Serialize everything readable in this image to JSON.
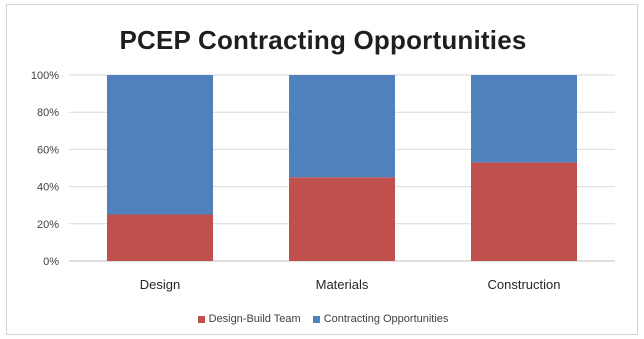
{
  "chart_data": {
    "type": "bar",
    "stacked": "percent",
    "title": "PCEP Contracting Opportunities",
    "categories": [
      "Design",
      "Materials",
      "Construction"
    ],
    "series": [
      {
        "name": "Design-Build Team",
        "color": "#c0504d",
        "values": [
          25,
          45,
          53
        ]
      },
      {
        "name": "Contracting Opportunities",
        "color": "#4f81bd",
        "values": [
          75,
          55,
          47
        ]
      }
    ],
    "ylim": [
      0,
      100
    ],
    "yticks": [
      "0%",
      "20%",
      "40%",
      "60%",
      "80%",
      "100%"
    ],
    "grid": true,
    "legend": "bottom"
  }
}
